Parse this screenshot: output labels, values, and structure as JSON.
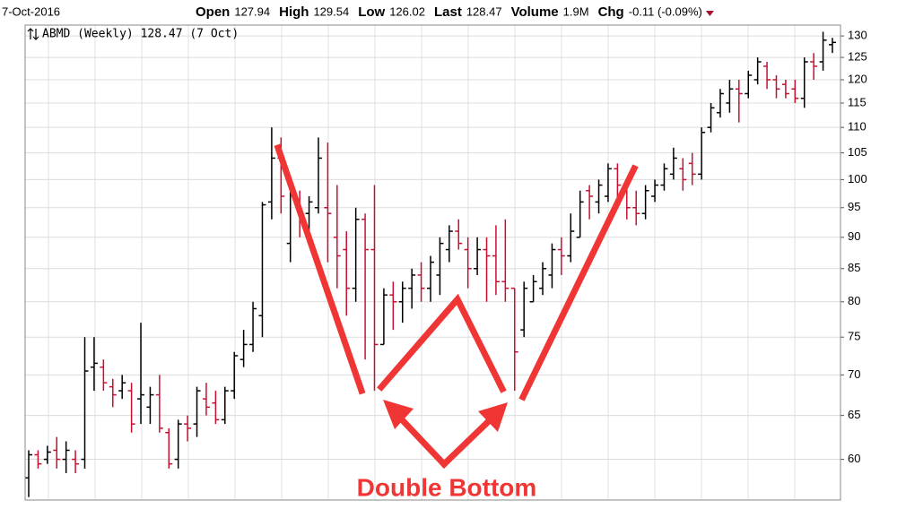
{
  "header": {
    "date": "7-Oct-2016",
    "quote": [
      {
        "label": "Open",
        "value": "127.94"
      },
      {
        "label": "High",
        "value": "129.54"
      },
      {
        "label": "Low",
        "value": "126.02"
      },
      {
        "label": "Last",
        "value": "128.47"
      },
      {
        "label": "Volume",
        "value": "1.9M"
      },
      {
        "label": "Chg",
        "value": "-0.11 (-0.09%)"
      }
    ]
  },
  "chart_data": {
    "type": "ohlc",
    "title": "ABMD (Weekly) 128.47 (7 Oct)",
    "annotation": "Double Bottom",
    "log_scale": true,
    "grid": true,
    "up_color": "#000000",
    "down_color": "#c8102e",
    "ylim": [
      55.7,
      132.6
    ],
    "yticks": [
      60,
      65,
      70,
      75,
      80,
      85,
      90,
      95,
      100,
      105,
      110,
      115,
      120,
      125,
      130
    ],
    "open": [
      58,
      60.5,
      60,
      61,
      60,
      60,
      60,
      71,
      71,
      68.5,
      68,
      68,
      67,
      66,
      67.5,
      63,
      60,
      64,
      64,
      67,
      66.5,
      64.5,
      68,
      72,
      74,
      78,
      96,
      104,
      89,
      96,
      94,
      95,
      95,
      90,
      88,
      82,
      93,
      88,
      74,
      81,
      80,
      82,
      84,
      82,
      84,
      88,
      91,
      88,
      85,
      88,
      87,
      83,
      82,
      76,
      80,
      82,
      84,
      88,
      87,
      90,
      98,
      96,
      97,
      102,
      98,
      95,
      94,
      97,
      99,
      101,
      102,
      103,
      101,
      110,
      113,
      115,
      118,
      117,
      120,
      123,
      120,
      119,
      118,
      116,
      124,
      124,
      127.94
    ],
    "high": [
      61,
      61,
      61.5,
      62.5,
      62,
      61,
      75,
      75,
      72,
      69.5,
      70,
      69,
      77,
      68.5,
      70,
      63.5,
      64.5,
      65,
      68.5,
      69,
      68,
      68.5,
      73,
      76,
      80,
      96,
      110,
      108,
      99,
      98,
      97,
      108,
      107,
      99,
      91,
      95,
      94,
      99,
      82,
      83,
      83,
      85,
      86,
      87,
      90,
      92,
      93,
      90,
      90,
      90,
      92,
      93,
      82,
      83,
      84,
      86,
      89,
      90,
      94,
      98,
      99,
      100,
      103,
      103,
      100,
      98,
      99,
      100,
      103,
      106,
      104,
      105,
      110,
      115,
      118,
      120,
      120,
      122,
      125,
      124,
      121,
      120,
      120,
      125,
      126,
      131,
      129.54
    ],
    "low": [
      56,
      59,
      59.5,
      59,
      58.5,
      58.5,
      59,
      68,
      68,
      66,
      67,
      63,
      64,
      64,
      63,
      59,
      59,
      62,
      62.5,
      65,
      64,
      64,
      67,
      71,
      73,
      75,
      93,
      94,
      86,
      90,
      89,
      94,
      86,
      82,
      78,
      80,
      72,
      68,
      74,
      76,
      77,
      79,
      80,
      80,
      81,
      86,
      88,
      82,
      84,
      80,
      81,
      80,
      68,
      75,
      80,
      81,
      82,
      84,
      86,
      90,
      93,
      94,
      96,
      96,
      93,
      92,
      93,
      96,
      98,
      100,
      98,
      99,
      100,
      109,
      112,
      113,
      111,
      116,
      119,
      118,
      116,
      116,
      115,
      114,
      120,
      122,
      126.02
    ],
    "close": [
      60.5,
      59.5,
      60.8,
      60,
      61,
      59.5,
      70.5,
      71.5,
      69,
      67.5,
      69,
      64,
      67.5,
      67.5,
      63.5,
      59.5,
      64,
      63.5,
      68,
      66,
      64.5,
      68,
      72.5,
      74,
      79,
      95.5,
      104,
      97,
      98,
      94,
      96,
      104,
      94,
      87,
      82,
      93,
      88,
      74,
      81,
      80,
      82,
      84,
      82,
      86,
      89,
      91,
      89,
      85,
      88,
      87,
      83,
      82,
      73,
      82,
      83,
      85,
      88,
      87,
      91,
      96,
      97,
      99,
      102,
      99,
      95,
      94,
      98,
      99,
      102,
      104,
      100,
      101,
      109,
      114,
      117,
      118,
      117,
      121,
      124,
      120,
      118,
      117,
      116,
      124,
      123,
      129,
      128.47
    ]
  }
}
